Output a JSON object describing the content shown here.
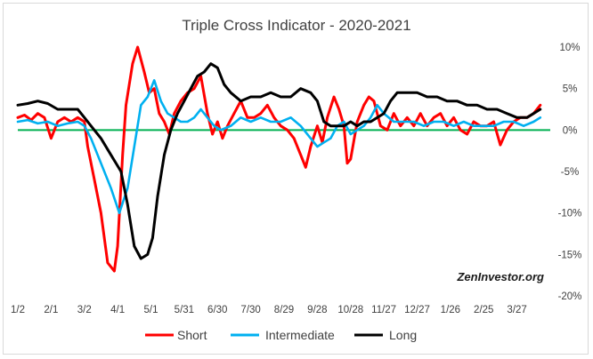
{
  "chart_data": {
    "type": "line",
    "title": "Triple Cross Indicator - 2020-2021",
    "watermark": "ZenInvestor.org",
    "xlabel": "",
    "ylabel": "",
    "ylim": [
      -20,
      10
    ],
    "y_ticks": [
      10,
      5,
      0,
      -5,
      -10,
      -15,
      -20
    ],
    "y_tick_labels": [
      "10%",
      "5%",
      "0%",
      "-5%",
      "-10%",
      "-15%",
      "-20%"
    ],
    "x_ticks": [
      0,
      1,
      2,
      3,
      4,
      5,
      6,
      7,
      8,
      9,
      10,
      11,
      12,
      13,
      14,
      15
    ],
    "x_tick_labels": [
      "1/2",
      "2/1",
      "3/2",
      "4/1",
      "5/1",
      "5/31",
      "6/30",
      "7/30",
      "8/29",
      "9/28",
      "10/28",
      "11/27",
      "12/27",
      "1/26",
      "2/25",
      "3/27"
    ],
    "xlim": [
      0,
      16
    ],
    "grid": false,
    "zero_line_color": "#00b050",
    "legend_position": "bottom",
    "series": [
      {
        "name": "Short",
        "color": "#ff0000",
        "x": [
          0,
          0.2,
          0.4,
          0.6,
          0.8,
          1.0,
          1.2,
          1.4,
          1.6,
          1.8,
          2.0,
          2.1,
          2.3,
          2.5,
          2.7,
          2.9,
          3.0,
          3.15,
          3.25,
          3.45,
          3.6,
          3.8,
          3.95,
          4.1,
          4.25,
          4.4,
          4.55,
          4.7,
          4.9,
          5.1,
          5.3,
          5.5,
          5.7,
          5.85,
          6.0,
          6.15,
          6.3,
          6.5,
          6.7,
          6.9,
          7.1,
          7.3,
          7.5,
          7.7,
          7.9,
          8.1,
          8.3,
          8.5,
          8.65,
          8.8,
          9.0,
          9.15,
          9.3,
          9.5,
          9.65,
          9.8,
          9.9,
          10.0,
          10.2,
          10.4,
          10.55,
          10.7,
          10.9,
          11.1,
          11.3,
          11.5,
          11.7,
          11.9,
          12.1,
          12.3,
          12.5,
          12.7,
          12.9,
          13.1,
          13.3,
          13.5,
          13.7,
          13.9,
          14.1,
          14.3,
          14.5,
          14.7,
          14.9,
          15.1,
          15.3,
          15.5,
          15.7
        ],
        "values": [
          1.5,
          1.8,
          1.2,
          2.0,
          1.5,
          -1.0,
          1.0,
          1.5,
          1.0,
          1.5,
          1.0,
          -2.0,
          -6.0,
          -10.0,
          -16.0,
          -17.0,
          -14.0,
          -3.0,
          3.0,
          8.0,
          10.0,
          7.0,
          4.5,
          5.0,
          2.0,
          1.0,
          -0.5,
          2.0,
          3.5,
          4.5,
          5.0,
          6.5,
          2.0,
          -0.5,
          1.0,
          -1.0,
          0.5,
          2.0,
          3.5,
          1.5,
          1.5,
          2.0,
          3.0,
          1.5,
          0.5,
          0.0,
          -1.0,
          -3.0,
          -4.5,
          -2.0,
          0.5,
          -1.5,
          1.5,
          4.0,
          2.5,
          0.5,
          -4.0,
          -3.5,
          1.0,
          3.0,
          4.0,
          3.5,
          0.5,
          0.0,
          2.0,
          0.5,
          1.5,
          0.5,
          2.0,
          0.5,
          1.5,
          2.0,
          0.5,
          1.5,
          0.0,
          -0.5,
          1.0,
          0.5,
          0.5,
          1.0,
          -1.8,
          0.0,
          1.0,
          1.5,
          1.5,
          2.0,
          3.0
        ]
      },
      {
        "name": "Intermediate",
        "color": "#00b0f0",
        "x": [
          0,
          0.3,
          0.6,
          0.9,
          1.2,
          1.5,
          1.8,
          2.0,
          2.2,
          2.5,
          2.8,
          3.05,
          3.3,
          3.5,
          3.7,
          3.9,
          4.1,
          4.3,
          4.5,
          4.7,
          4.9,
          5.1,
          5.3,
          5.5,
          5.7,
          5.9,
          6.1,
          6.4,
          6.7,
          7.0,
          7.3,
          7.6,
          7.9,
          8.2,
          8.5,
          8.8,
          9.0,
          9.2,
          9.4,
          9.6,
          9.8,
          10.0,
          10.2,
          10.4,
          10.6,
          10.8,
          11.0,
          11.3,
          11.6,
          11.9,
          12.2,
          12.5,
          12.8,
          13.1,
          13.4,
          13.7,
          14.0,
          14.3,
          14.6,
          14.9,
          15.2,
          15.5,
          15.7
        ],
        "values": [
          1.0,
          1.2,
          0.8,
          1.0,
          0.5,
          0.8,
          1.0,
          0.5,
          -1.0,
          -4.0,
          -7.0,
          -10.0,
          -7.0,
          -2.0,
          3.0,
          4.0,
          6.0,
          3.5,
          2.0,
          1.5,
          1.0,
          1.0,
          1.5,
          2.5,
          1.5,
          0.5,
          0.0,
          0.5,
          1.5,
          1.0,
          1.5,
          1.0,
          1.0,
          1.5,
          0.5,
          -1.0,
          -2.0,
          -1.5,
          -1.0,
          0.5,
          1.0,
          -0.5,
          0.0,
          0.5,
          1.5,
          3.0,
          2.0,
          1.0,
          1.0,
          1.0,
          0.5,
          1.0,
          1.0,
          0.5,
          1.0,
          0.5,
          0.5,
          0.5,
          1.0,
          1.0,
          0.5,
          1.0,
          1.5
        ]
      },
      {
        "name": "Long",
        "color": "#000000",
        "x": [
          0,
          0.3,
          0.6,
          0.9,
          1.2,
          1.5,
          1.8,
          2.0,
          2.2,
          2.5,
          2.8,
          3.1,
          3.3,
          3.5,
          3.7,
          3.9,
          4.05,
          4.2,
          4.4,
          4.6,
          4.8,
          5.0,
          5.2,
          5.4,
          5.6,
          5.8,
          6.0,
          6.2,
          6.4,
          6.7,
          7.0,
          7.3,
          7.6,
          7.9,
          8.2,
          8.5,
          8.8,
          9.0,
          9.2,
          9.4,
          9.6,
          9.8,
          10.0,
          10.2,
          10.4,
          10.6,
          10.8,
          11.0,
          11.2,
          11.4,
          11.7,
          12.0,
          12.3,
          12.6,
          12.9,
          13.2,
          13.5,
          13.8,
          14.1,
          14.4,
          14.7,
          15.0,
          15.3,
          15.5,
          15.7
        ],
        "values": [
          3.0,
          3.2,
          3.5,
          3.2,
          2.5,
          2.5,
          2.5,
          1.5,
          0.5,
          -1.0,
          -3.0,
          -5.0,
          -9.0,
          -14.0,
          -15.5,
          -15.0,
          -13.0,
          -8.0,
          -3.0,
          0.0,
          2.0,
          3.5,
          5.0,
          6.5,
          7.0,
          8.0,
          7.5,
          5.5,
          4.5,
          3.5,
          4.0,
          4.0,
          4.5,
          4.0,
          4.0,
          5.0,
          4.5,
          3.5,
          1.0,
          0.5,
          0.5,
          0.5,
          1.0,
          0.5,
          1.0,
          1.0,
          1.5,
          2.0,
          3.5,
          4.5,
          4.5,
          4.5,
          4.0,
          4.0,
          3.5,
          3.5,
          3.0,
          3.0,
          2.5,
          2.5,
          2.0,
          1.5,
          1.5,
          2.0,
          2.5
        ]
      }
    ]
  }
}
